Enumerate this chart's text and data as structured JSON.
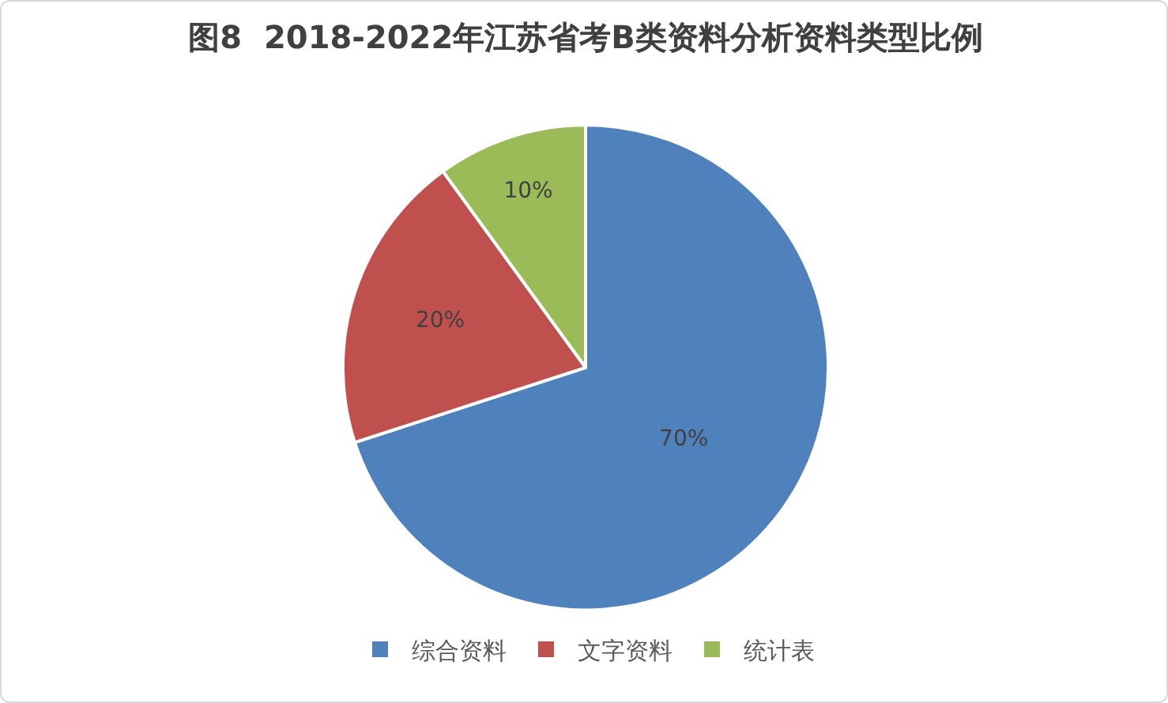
{
  "chart_data": {
    "type": "pie",
    "title": "图8  2018-2022年江苏省考B类资料分析资料类型比例",
    "categories": [
      "综合资料",
      "文字资料",
      "统计表"
    ],
    "values": [
      70,
      20,
      10
    ],
    "colors": [
      "#4f81bd",
      "#c0504d",
      "#9bbb59"
    ],
    "value_labels": [
      "70%",
      "20%",
      "10%"
    ],
    "legend": "bottom"
  }
}
